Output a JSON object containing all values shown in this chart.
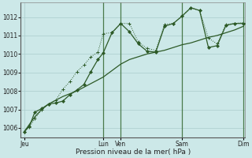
{
  "xlabel": "Pression niveau de la mer( hPa )",
  "bg_color": "#cce8e8",
  "grid_color": "#aacccc",
  "line_color": "#2d5a27",
  "vline_color": "#4a7a4a",
  "ylim": [
    1005.5,
    1012.8
  ],
  "yticks": [
    1006,
    1007,
    1008,
    1009,
    1010,
    1011,
    1012
  ],
  "xlim": [
    -0.2,
    12.6
  ],
  "x_tick_pos": [
    0,
    4.5,
    5.5,
    9.0,
    12.5
  ],
  "x_tick_labels": [
    "Jeu",
    "Lun",
    "Ven",
    "Sam",
    "Dim"
  ],
  "vlines": [
    4.5,
    5.5,
    9.0,
    12.5
  ],
  "smooth_x": [
    0,
    0.3,
    0.6,
    1.0,
    1.4,
    1.8,
    2.2,
    2.6,
    3.0,
    3.4,
    3.8,
    4.2,
    4.5,
    5.0,
    5.5,
    6.0,
    6.5,
    7.0,
    7.5,
    8.0,
    8.5,
    9.0,
    9.5,
    10.0,
    10.5,
    11.0,
    11.5,
    12.0,
    12.5
  ],
  "smooth_y": [
    1005.8,
    1006.2,
    1006.6,
    1007.0,
    1007.3,
    1007.5,
    1007.7,
    1007.85,
    1008.0,
    1008.2,
    1008.4,
    1008.6,
    1008.75,
    1009.1,
    1009.45,
    1009.7,
    1009.85,
    1010.0,
    1010.1,
    1010.2,
    1010.35,
    1010.5,
    1010.6,
    1010.75,
    1010.9,
    1011.0,
    1011.15,
    1011.3,
    1011.5
  ],
  "dotted_x": [
    0,
    0.3,
    0.6,
    1.0,
    1.4,
    1.8,
    2.2,
    2.6,
    3.0,
    3.4,
    3.8,
    4.2,
    4.5,
    5.0,
    5.5,
    6.0,
    6.5,
    7.0,
    7.5,
    8.0,
    8.5,
    9.0,
    9.5,
    10.0,
    10.5,
    11.0,
    11.5,
    12.0,
    12.5
  ],
  "dotted_y": [
    1005.8,
    1006.05,
    1006.5,
    1007.0,
    1007.3,
    1007.5,
    1008.1,
    1008.5,
    1009.05,
    1009.4,
    1009.85,
    1010.1,
    1011.1,
    1011.15,
    1011.65,
    1011.65,
    1010.65,
    1010.3,
    1010.2,
    1011.6,
    1011.65,
    1012.05,
    1012.5,
    1012.35,
    1010.85,
    1010.55,
    1011.6,
    1011.65,
    1011.7
  ],
  "main_x": [
    0,
    0.3,
    0.6,
    1.0,
    1.4,
    1.8,
    2.2,
    2.6,
    3.0,
    3.4,
    3.8,
    4.2,
    4.5,
    5.0,
    5.5,
    6.0,
    6.5,
    7.0,
    7.5,
    8.0,
    8.5,
    9.0,
    9.5,
    10.0,
    10.5,
    11.0,
    11.5,
    12.0,
    12.5
  ],
  "main_y": [
    1005.8,
    1006.1,
    1006.85,
    1007.05,
    1007.3,
    1007.35,
    1007.45,
    1007.8,
    1008.05,
    1008.35,
    1009.05,
    1009.7,
    1010.05,
    1011.15,
    1011.65,
    1011.2,
    1010.55,
    1010.15,
    1010.1,
    1011.5,
    1011.65,
    1012.05,
    1012.5,
    1012.35,
    1010.35,
    1010.45,
    1011.55,
    1011.65,
    1011.65
  ]
}
